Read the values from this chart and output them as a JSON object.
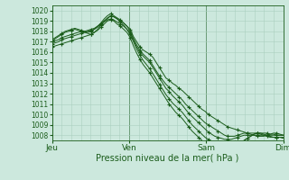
{
  "xlabel": "Pression niveau de la mer( hPa )",
  "xlabels": [
    "Jeu",
    "Ven",
    "Sam",
    "Dim"
  ],
  "xtick_positions": [
    0,
    24,
    48,
    72
  ],
  "ylim": [
    1007.5,
    1020.5
  ],
  "yticks": [
    1008,
    1009,
    1010,
    1011,
    1012,
    1013,
    1014,
    1015,
    1016,
    1017,
    1018,
    1019,
    1020
  ],
  "bg_color": "#cce8dd",
  "grid_color": "#aacfbf",
  "line_color": "#1a5c1a",
  "marker": "+",
  "figsize": [
    3.2,
    2.0
  ],
  "dpi": 100,
  "series": [
    [
      1017.0,
      1017.3,
      1017.5,
      1017.7,
      1017.9,
      1018.0,
      1018.1,
      1018.2,
      1018.1,
      1018.0,
      1017.9,
      1017.8,
      1017.7,
      1017.9,
      1018.2,
      1018.6,
      1019.0,
      1019.2,
      1019.5,
      1019.4,
      1019.2,
      1019.0,
      1018.8,
      1018.5,
      1018.2,
      1017.5,
      1017.0,
      1016.5,
      1016.2,
      1016.0,
      1015.8,
      1015.5,
      1015.0,
      1014.5,
      1014.0,
      1013.5,
      1013.3,
      1013.0,
      1012.8,
      1012.5,
      1012.3,
      1012.0,
      1011.7,
      1011.4,
      1011.1,
      1010.8,
      1010.5,
      1010.3,
      1010.0,
      1009.8,
      1009.6,
      1009.4,
      1009.2,
      1009.0,
      1008.8,
      1008.7,
      1008.6,
      1008.5,
      1008.4,
      1008.3,
      1008.2,
      1008.1,
      1008.0,
      1007.9,
      1007.9,
      1007.9,
      1008.0,
      1008.1,
      1008.2,
      1008.2,
      1008.1,
      1008.0
    ],
    [
      1017.2,
      1017.4,
      1017.6,
      1017.8,
      1018.0,
      1018.1,
      1018.2,
      1018.3,
      1018.2,
      1018.1,
      1018.0,
      1017.9,
      1018.0,
      1018.2,
      1018.5,
      1018.8,
      1019.2,
      1019.5,
      1019.7,
      1019.5,
      1019.3,
      1019.1,
      1018.8,
      1018.5,
      1018.0,
      1017.3,
      1016.7,
      1016.2,
      1015.8,
      1015.5,
      1015.2,
      1014.7,
      1014.2,
      1013.7,
      1013.3,
      1012.9,
      1012.6,
      1012.3,
      1012.0,
      1011.7,
      1011.4,
      1011.0,
      1010.7,
      1010.4,
      1010.1,
      1009.8,
      1009.5,
      1009.2,
      1009.0,
      1008.8,
      1008.6,
      1008.4,
      1008.2,
      1008.0,
      1007.9,
      1007.9,
      1007.9,
      1008.0,
      1008.1,
      1008.2,
      1008.2,
      1008.2,
      1008.2,
      1008.2,
      1008.2,
      1008.2,
      1008.2,
      1008.1,
      1008.1,
      1008.0,
      1008.0,
      1008.0
    ],
    [
      1017.0,
      1017.1,
      1017.2,
      1017.4,
      1017.5,
      1017.6,
      1017.7,
      1017.8,
      1017.9,
      1018.0,
      1018.0,
      1018.1,
      1018.2,
      1018.3,
      1018.5,
      1018.7,
      1018.9,
      1019.1,
      1019.2,
      1019.1,
      1018.9,
      1018.7,
      1018.5,
      1018.2,
      1017.8,
      1017.2,
      1016.5,
      1016.0,
      1015.6,
      1015.3,
      1015.0,
      1014.5,
      1014.0,
      1013.5,
      1013.0,
      1012.5,
      1012.2,
      1011.8,
      1011.5,
      1011.2,
      1010.9,
      1010.5,
      1010.1,
      1009.8,
      1009.5,
      1009.2,
      1008.9,
      1008.6,
      1008.3,
      1008.1,
      1007.9,
      1007.8,
      1007.7,
      1007.6,
      1007.6,
      1007.6,
      1007.7,
      1007.8,
      1007.9,
      1008.0,
      1008.0,
      1008.0,
      1008.0,
      1008.0,
      1008.0,
      1008.0,
      1008.0,
      1008.0,
      1008.0,
      1008.0,
      1008.0,
      1008.0
    ],
    [
      1016.8,
      1016.9,
      1017.0,
      1017.2,
      1017.3,
      1017.4,
      1017.5,
      1017.6,
      1017.7,
      1017.8,
      1017.9,
      1018.0,
      1018.1,
      1018.2,
      1018.4,
      1018.7,
      1019.0,
      1019.3,
      1019.5,
      1019.4,
      1019.2,
      1018.9,
      1018.6,
      1018.2,
      1017.7,
      1017.0,
      1016.3,
      1015.7,
      1015.2,
      1014.8,
      1014.4,
      1013.9,
      1013.4,
      1012.9,
      1012.4,
      1011.9,
      1011.5,
      1011.1,
      1010.8,
      1010.5,
      1010.2,
      1009.8,
      1009.4,
      1009.0,
      1008.7,
      1008.4,
      1008.1,
      1007.8,
      1007.6,
      1007.4,
      1007.3,
      1007.2,
      1007.1,
      1007.0,
      1007.0,
      1007.0,
      1007.1,
      1007.2,
      1007.3,
      1007.5,
      1007.7,
      1007.9,
      1008.1,
      1008.2,
      1008.2,
      1008.1,
      1008.0,
      1007.9,
      1007.8,
      1007.8,
      1007.8,
      1007.8
    ],
    [
      1016.5,
      1016.6,
      1016.7,
      1016.8,
      1016.9,
      1017.0,
      1017.1,
      1017.2,
      1017.3,
      1017.4,
      1017.5,
      1017.6,
      1017.7,
      1017.9,
      1018.1,
      1018.4,
      1018.7,
      1019.0,
      1019.1,
      1019.0,
      1018.7,
      1018.5,
      1018.2,
      1017.9,
      1017.4,
      1016.6,
      1015.9,
      1015.3,
      1014.8,
      1014.4,
      1014.0,
      1013.5,
      1013.0,
      1012.5,
      1012.0,
      1011.5,
      1011.0,
      1010.6,
      1010.2,
      1009.9,
      1009.6,
      1009.2,
      1008.8,
      1008.4,
      1008.1,
      1007.8,
      1007.5,
      1007.3,
      1007.1,
      1007.0,
      1006.9,
      1006.8,
      1006.8,
      1006.8,
      1006.8,
      1006.9,
      1007.0,
      1007.2,
      1007.3,
      1007.5,
      1007.7,
      1007.9,
      1008.1,
      1008.2,
      1008.1,
      1008.0,
      1007.9,
      1007.8,
      1007.8,
      1007.8,
      1007.8,
      1007.7
    ]
  ]
}
